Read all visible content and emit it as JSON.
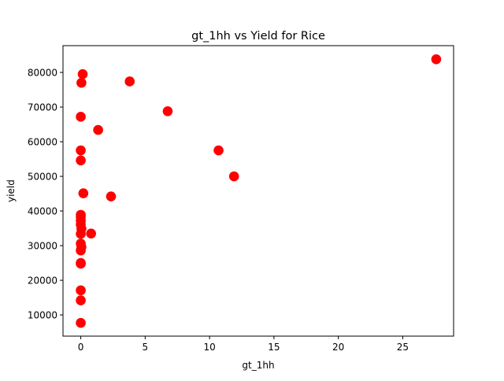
{
  "chart_data": {
    "type": "scatter",
    "title": "gt_1hh vs Yield for Rice",
    "xlabel": "gt_1hh",
    "ylabel": "yield",
    "xlim": [
      -1.38,
      28.95
    ],
    "ylim": [
      3880,
      87730
    ],
    "xticks": [
      0,
      5,
      10,
      15,
      20,
      25
    ],
    "yticks": [
      10000,
      20000,
      30000,
      40000,
      50000,
      60000,
      70000,
      80000
    ],
    "xtick_labels": [
      "0",
      "5",
      "10",
      "15",
      "20",
      "25"
    ],
    "ytick_labels": [
      "10000",
      "20000",
      "30000",
      "40000",
      "50000",
      "60000",
      "70000",
      "80000"
    ],
    "grid": false,
    "marker_color": "#ff0000",
    "points": [
      {
        "x": 0.0,
        "y": 7700
      },
      {
        "x": 0.0,
        "y": 14200
      },
      {
        "x": 0.0,
        "y": 17100
      },
      {
        "x": 0.0,
        "y": 24800
      },
      {
        "x": 0.0,
        "y": 25000
      },
      {
        "x": 0.0,
        "y": 28600
      },
      {
        "x": 0.05,
        "y": 29600
      },
      {
        "x": 0.0,
        "y": 30600
      },
      {
        "x": 0.0,
        "y": 33400
      },
      {
        "x": 0.05,
        "y": 34900
      },
      {
        "x": 0.0,
        "y": 36100
      },
      {
        "x": 0.0,
        "y": 37200
      },
      {
        "x": 0.0,
        "y": 38300
      },
      {
        "x": 0.0,
        "y": 38900
      },
      {
        "x": 0.2,
        "y": 45100
      },
      {
        "x": 0.0,
        "y": 54600
      },
      {
        "x": 0.0,
        "y": 57500
      },
      {
        "x": 0.0,
        "y": 67200
      },
      {
        "x": 0.05,
        "y": 77000
      },
      {
        "x": 0.15,
        "y": 79500
      },
      {
        "x": 0.8,
        "y": 33500
      },
      {
        "x": 1.35,
        "y": 63400
      },
      {
        "x": 2.35,
        "y": 44200
      },
      {
        "x": 3.8,
        "y": 77400
      },
      {
        "x": 6.75,
        "y": 68800
      },
      {
        "x": 10.7,
        "y": 57500
      },
      {
        "x": 11.9,
        "y": 50000
      },
      {
        "x": 27.6,
        "y": 83800
      }
    ]
  }
}
